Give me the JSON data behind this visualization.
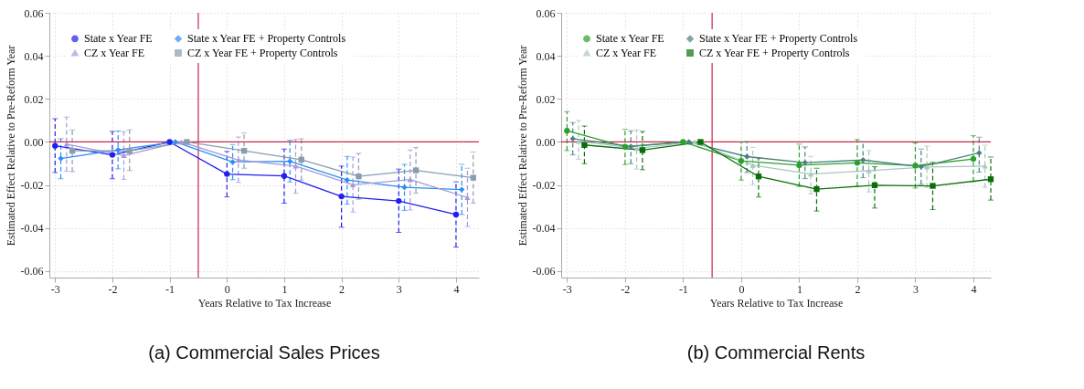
{
  "chart_data": [
    {
      "type": "line",
      "title": "(a) Commercial Sales Prices",
      "xlabel": "Years Relative to Tax Increase",
      "ylabel": "Estimated Effect Relative to Pre-Reform Year",
      "xlim": [
        -3.1,
        4.4
      ],
      "xticks": [
        {
          "value": -3,
          "label": "-3"
        },
        {
          "value": -2,
          "label": "-2"
        },
        {
          "value": -1,
          "label": "-1"
        },
        {
          "value": 0,
          "label": "0"
        },
        {
          "value": 1,
          "label": "1"
        },
        {
          "value": 2,
          "label": "2"
        },
        {
          "value": 3,
          "label": "3"
        },
        {
          "value": 4,
          "label": "4"
        }
      ],
      "ylim": [
        -0.063,
        0.06
      ],
      "yticks": [
        {
          "value": -0.06,
          "label": "-0.06"
        },
        {
          "value": -0.04,
          "label": "-0.04"
        },
        {
          "value": -0.02,
          "label": "-0.02"
        },
        {
          "value": 0,
          "label": "0.00"
        },
        {
          "value": 0.02,
          "label": "0.02"
        },
        {
          "value": 0.04,
          "label": "0.04"
        },
        {
          "value": 0.06,
          "label": "0.06"
        }
      ],
      "grid": true,
      "legend": "top left",
      "line_style": "solid",
      "ref_lines": [
        {
          "axis": "y",
          "value": 0,
          "color": "#c8284a"
        },
        {
          "axis": "x",
          "value": -0.5,
          "color": "#c8284a"
        }
      ],
      "series": [
        {
          "name": "State x Year FE",
          "color": "#1f1ff0",
          "marker": "circle",
          "x": [
            -3,
            -2,
            -1,
            0,
            1,
            2,
            3,
            4
          ],
          "values": [
            -0.0018,
            -0.006,
            0,
            -0.0149,
            -0.0158,
            -0.0253,
            -0.0274,
            -0.0337
          ],
          "errors": [
            [
              -0.0142,
              0.0108
            ],
            [
              -0.0171,
              0.0049
            ],
            null,
            [
              -0.0255,
              -0.0044
            ],
            [
              -0.0284,
              -0.0033
            ],
            [
              -0.0396,
              -0.0112
            ],
            [
              -0.042,
              -0.0126
            ],
            [
              -0.0488,
              -0.0185
            ]
          ]
        },
        {
          "name": "State x Year FE + Property Controls",
          "color": "#2a8ff0",
          "marker": "diamond",
          "x": [
            -2.9,
            -1.9,
            -0.9,
            0.1,
            1.1,
            2.1,
            3.1,
            4.1
          ],
          "values": [
            -0.0077,
            -0.0037,
            0,
            -0.0093,
            -0.009,
            -0.0177,
            -0.0211,
            -0.0221
          ],
          "errors": [
            [
              -0.0171,
              0.0015
            ],
            [
              -0.0125,
              0.0051
            ],
            null,
            [
              -0.0175,
              -0.0012
            ],
            [
              -0.0186,
              0.0008
            ],
            [
              -0.0289,
              -0.0067
            ],
            [
              -0.0318,
              -0.0104
            ],
            [
              -0.0337,
              -0.0104
            ]
          ]
        },
        {
          "name": "CZ x Year FE",
          "color": "#a49adb",
          "marker": "triangle",
          "x": [
            -2.8,
            -1.8,
            -0.8,
            0.2,
            1.2,
            2.2,
            3.2,
            4.2
          ],
          "values": [
            -0.001,
            -0.0063,
            0,
            -0.0084,
            -0.0112,
            -0.0199,
            -0.0175,
            -0.0258
          ],
          "errors": [
            [
              -0.0136,
              0.0116
            ],
            [
              -0.0174,
              0.0048
            ],
            null,
            [
              -0.0188,
              0.0023
            ],
            [
              -0.0238,
              0.0012
            ],
            [
              -0.0326,
              -0.007
            ],
            [
              -0.0316,
              -0.0037
            ],
            [
              -0.0393,
              -0.0122
            ]
          ]
        },
        {
          "name": "CZ x Year FE + Property Controls",
          "color": "#8a9cb0",
          "marker": "square",
          "x": [
            -2.7,
            -1.7,
            -0.7,
            0.3,
            1.3,
            2.3,
            3.3,
            4.3
          ],
          "values": [
            -0.0041,
            -0.0041,
            0,
            -0.0041,
            -0.0082,
            -0.016,
            -0.0132,
            -0.0166
          ],
          "errors": [
            [
              -0.0138,
              0.0056
            ],
            [
              -0.0133,
              0.0056
            ],
            null,
            [
              -0.0122,
              0.0042
            ],
            [
              -0.0177,
              0.0015
            ],
            [
              -0.0266,
              -0.0053
            ],
            [
              -0.0238,
              -0.0026
            ],
            [
              -0.0284,
              -0.0047
            ]
          ]
        }
      ]
    },
    {
      "type": "line",
      "title": "(b) Commercial Rents",
      "xlabel": "Years Relative to Tax Increase",
      "ylabel": "Estimated Effect Relative to Pre-Reform Year",
      "xlim": [
        -3.1,
        4.3
      ],
      "xticks": [
        {
          "value": -3,
          "label": "-3"
        },
        {
          "value": -2,
          "label": "-2"
        },
        {
          "value": -1,
          "label": "-1"
        },
        {
          "value": 0,
          "label": "0"
        },
        {
          "value": 1,
          "label": "1"
        },
        {
          "value": 2,
          "label": "2"
        },
        {
          "value": 3,
          "label": "3"
        },
        {
          "value": 4,
          "label": "4"
        }
      ],
      "ylim": [
        -0.063,
        0.06
      ],
      "yticks": [
        {
          "value": -0.06,
          "label": "-0.06"
        },
        {
          "value": -0.04,
          "label": "-0.04"
        },
        {
          "value": -0.02,
          "label": "-0.02"
        },
        {
          "value": 0,
          "label": "0.00"
        },
        {
          "value": 0.02,
          "label": "0.02"
        },
        {
          "value": 0.04,
          "label": "0.04"
        },
        {
          "value": 0.06,
          "label": "0.06"
        }
      ],
      "grid": true,
      "legend": "top left",
      "line_style": "solid",
      "ref_lines": [
        {
          "axis": "y",
          "value": 0,
          "color": "#c8284a"
        },
        {
          "axis": "x",
          "value": -0.5,
          "color": "#c8284a"
        }
      ],
      "series": [
        {
          "name": "State x Year FE",
          "color": "#2ca02c",
          "marker": "circle",
          "x": [
            -3,
            -2,
            -1,
            0,
            1,
            2,
            3,
            4
          ],
          "values": [
            0.0052,
            -0.0022,
            0,
            -0.0088,
            -0.0108,
            -0.0097,
            -0.011,
            -0.0079
          ],
          "errors": [
            [
              -0.004,
              0.0141
            ],
            [
              -0.0105,
              0.0059
            ],
            null,
            [
              -0.0177,
              -0.0001
            ],
            [
              -0.0207,
              -0.001
            ],
            [
              -0.0207,
              0.0011
            ],
            [
              -0.0214,
              -0.0005
            ],
            [
              -0.0184,
              0.0029
            ]
          ]
        },
        {
          "name": "State x Year FE + Property Controls",
          "color": "#4a8080",
          "marker": "diamond",
          "x": [
            -2.9,
            -1.9,
            -0.9,
            0.1,
            1.1,
            2.1,
            3.1,
            4.1
          ],
          "values": [
            0.0015,
            -0.0021,
            0,
            -0.0068,
            -0.0096,
            -0.0084,
            -0.0115,
            -0.0051
          ],
          "errors": [
            [
              -0.006,
              0.009
            ],
            [
              -0.0101,
              0.0052
            ],
            null,
            [
              -0.0142,
              0.0001
            ],
            [
              -0.017,
              -0.0023
            ],
            [
              -0.0166,
              0.0001
            ],
            [
              -0.0197,
              -0.0033
            ],
            [
              -0.014,
              0.0022
            ]
          ]
        },
        {
          "name": "CZ x Year FE",
          "color": "#a8c8c0",
          "marker": "triangle",
          "x": [
            -2.8,
            -1.8,
            -0.8,
            0.2,
            1.2,
            2.2,
            3.2,
            4.2
          ],
          "values": [
            0.0004,
            -0.003,
            0,
            -0.0108,
            -0.0149,
            -0.0133,
            -0.0116,
            -0.0112
          ],
          "errors": [
            [
              -0.0081,
              0.01
            ],
            [
              -0.0126,
              0.0056
            ],
            null,
            [
              -0.0197,
              -0.0026
            ],
            [
              -0.0242,
              -0.0067
            ],
            [
              -0.0232,
              -0.004
            ],
            [
              -0.0211,
              -0.0019
            ],
            [
              -0.0211,
              -0.0015
            ]
          ]
        },
        {
          "name": "CZ x Year FE + Property Controls",
          "color": "#0a6e0a",
          "marker": "square",
          "x": [
            -2.7,
            -1.7,
            -0.7,
            0.3,
            1.3,
            2.3,
            3.3,
            4.3
          ],
          "values": [
            -0.0014,
            -0.0038,
            0,
            -0.016,
            -0.0219,
            -0.0201,
            -0.0204,
            -0.0173
          ],
          "errors": [
            [
              -0.0101,
              0.0074
            ],
            [
              -0.0129,
              0.0049
            ],
            null,
            [
              -0.0256,
              -0.0074
            ],
            [
              -0.0321,
              -0.0122
            ],
            [
              -0.0307,
              -0.0115
            ],
            [
              -0.0314,
              -0.0095
            ],
            [
              -0.027,
              -0.007
            ]
          ]
        }
      ]
    }
  ]
}
